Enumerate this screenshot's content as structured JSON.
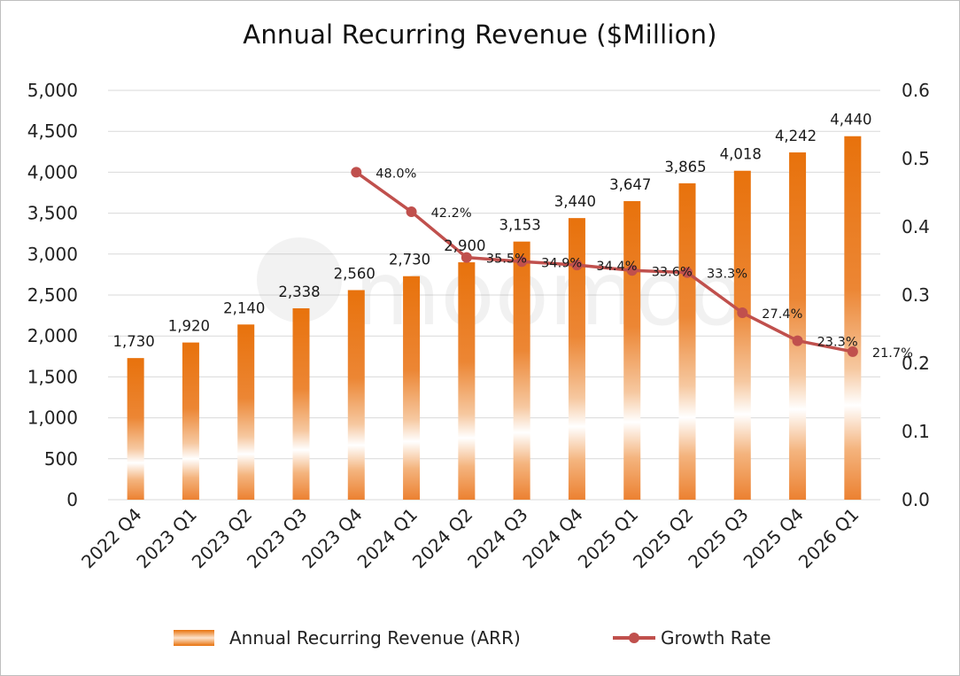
{
  "colors": {
    "bar": "#e8720c",
    "line": "#c0504d",
    "grid": "#d9d9d9"
  },
  "chart_data": {
    "type": "bar",
    "title": "Annual Recurring Revenue ($Million)",
    "categories": [
      "2022 Q4",
      "2023 Q1",
      "2023 Q2",
      "2023 Q3",
      "2023 Q4",
      "2024 Q1",
      "2024 Q2",
      "2024 Q3",
      "2024 Q4",
      "2025 Q1",
      "2025 Q2",
      "2025 Q3",
      "2025 Q4",
      "2026 Q1"
    ],
    "series": [
      {
        "name": "Annual Recurring Revenue (ARR)",
        "type": "bar",
        "axis": "left",
        "values": [
          1730,
          1920,
          2140,
          2338,
          2560,
          2730,
          2900,
          3153,
          3440,
          3647,
          3865,
          4018,
          4242,
          4440
        ],
        "labels": [
          "1,730",
          "1,920",
          "2,140",
          "2,338",
          "2,560",
          "2,730",
          "2,900",
          "3,153",
          "3,440",
          "3,647",
          "3,865",
          "4,018",
          "4,242",
          "4,440"
        ]
      },
      {
        "name": "Growth Rate",
        "type": "line",
        "axis": "right",
        "values": [
          null,
          null,
          null,
          null,
          0.48,
          0.422,
          0.355,
          0.349,
          0.344,
          0.336,
          0.333,
          0.274,
          0.233,
          0.217
        ],
        "labels": [
          null,
          null,
          null,
          null,
          "48.0%",
          "42.2%",
          "35.5%",
          "34.9%",
          "34.4%",
          "33.6%",
          "33.3%",
          "27.4%",
          "23.3%",
          "21.7%"
        ]
      }
    ],
    "y_left": {
      "lim": [
        0,
        5000
      ],
      "ticks": [
        0,
        500,
        1000,
        1500,
        2000,
        2500,
        3000,
        3500,
        4000,
        4500,
        5000
      ],
      "tick_labels": [
        "0",
        "500",
        "1,000",
        "1,500",
        "2,000",
        "2,500",
        "3,000",
        "3,500",
        "4,000",
        "4,500",
        "5,000"
      ]
    },
    "y_right": {
      "lim": [
        0,
        0.6
      ],
      "ticks": [
        0,
        0.1,
        0.2,
        0.3,
        0.4,
        0.5,
        0.6
      ],
      "tick_labels": [
        "0.0",
        "0.1",
        "0.2",
        "0.3",
        "0.4",
        "0.5",
        "0.6"
      ]
    },
    "grid": true,
    "legend_position": "bottom",
    "legend": [
      "Annual Recurring Revenue (ARR)",
      "Growth Rate"
    ]
  }
}
